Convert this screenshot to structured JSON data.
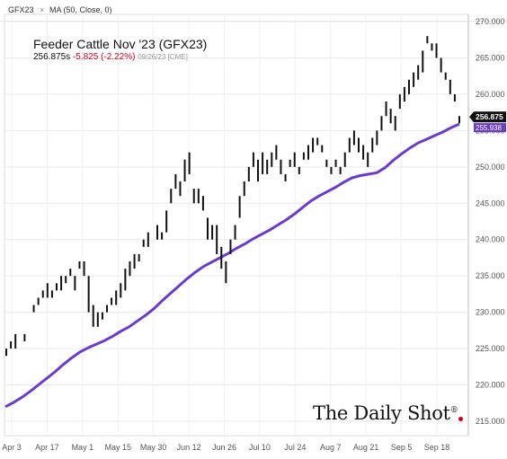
{
  "toolbar": {
    "symbol": "GFX23",
    "close_glyph": "×",
    "indicator": "MA (50, Close, 0)"
  },
  "header": {
    "title": "Feeder Cattle Nov '23 (GFX23)",
    "price": "256.875s",
    "change": "-5.825 (-2.22%)",
    "timestamp": "09/26/23 [CME]"
  },
  "watermark": {
    "text": "The Daily Shot",
    "mark": "®"
  },
  "colors": {
    "bars": "#111111",
    "ma": "#6a3cc8",
    "change": "#d0021b",
    "grid": "#e9e9e9"
  },
  "chart_data": {
    "type": "ohlc-line",
    "y_axis": {
      "min": 215,
      "max": 270,
      "step": 5,
      "position": "right",
      "tick_labels": [
        "270.000",
        "265.000",
        "260.000",
        "255.000",
        "250.000",
        "245.000",
        "240.000",
        "235.000",
        "230.000",
        "225.000",
        "220.000",
        "215.000"
      ]
    },
    "x_axis": {
      "tick_labels": [
        "Apr 3",
        "Apr 17",
        "May 1",
        "May 15",
        "May 30",
        "Jun 12",
        "Jun 26",
        "Jul 10",
        "Jul 24",
        "Aug 7",
        "Aug 21",
        "Sep 5",
        "Sep 18"
      ]
    },
    "last_price_label": "256.875",
    "ma_label": "255.938",
    "series": [
      {
        "name": "GFX23",
        "kind": "bars",
        "values": [
          [
            225,
            224
          ],
          [
            226,
            225
          ],
          [
            227,
            225
          ],
          [
            226,
            226
          ],
          [
            227,
            226
          ],
          [
            228,
            228
          ],
          [
            231,
            230
          ],
          [
            232,
            231
          ],
          [
            233,
            232
          ],
          [
            234,
            232
          ],
          [
            233,
            232
          ],
          [
            234,
            233
          ],
          [
            235,
            233
          ],
          [
            235,
            234
          ],
          [
            236,
            235
          ],
          [
            235,
            233
          ],
          [
            237,
            236
          ],
          [
            237,
            235
          ],
          [
            235,
            230
          ],
          [
            231,
            228
          ],
          [
            230,
            228
          ],
          [
            230,
            229
          ],
          [
            231,
            230
          ],
          [
            232,
            231
          ],
          [
            233,
            231
          ],
          [
            234,
            232
          ],
          [
            236,
            233
          ],
          [
            237,
            235
          ],
          [
            238,
            236
          ],
          [
            238,
            237
          ],
          [
            240,
            239
          ],
          [
            241,
            239
          ],
          [
            240,
            240
          ],
          [
            242,
            240
          ],
          [
            241,
            240
          ],
          [
            244,
            241
          ],
          [
            247,
            245
          ],
          [
            249,
            247
          ],
          [
            248,
            246
          ],
          [
            251,
            248
          ],
          [
            252,
            249
          ],
          [
            247,
            245
          ],
          [
            247,
            245
          ],
          [
            246,
            244
          ],
          [
            243,
            240
          ],
          [
            242,
            240
          ],
          [
            242,
            238
          ],
          [
            239,
            236
          ],
          [
            237,
            234
          ],
          [
            240,
            238
          ],
          [
            242,
            240
          ],
          [
            246,
            243
          ],
          [
            248,
            246
          ],
          [
            250,
            248
          ],
          [
            252,
            250
          ],
          [
            251,
            248
          ],
          [
            252,
            249
          ],
          [
            251,
            249
          ],
          [
            252,
            250
          ],
          [
            253,
            251
          ],
          [
            251,
            249
          ],
          [
            249,
            248
          ],
          [
            251,
            250
          ],
          [
            252,
            250
          ],
          [
            250,
            249
          ],
          [
            252,
            251
          ],
          [
            253,
            251
          ],
          [
            254,
            252
          ],
          [
            254,
            253
          ],
          [
            253,
            252
          ],
          [
            251,
            250
          ],
          [
            250,
            249
          ],
          [
            251,
            250
          ],
          [
            250,
            249
          ],
          [
            252,
            250
          ],
          [
            254,
            252
          ],
          [
            255,
            253
          ],
          [
            254,
            252
          ],
          [
            253,
            251
          ],
          [
            252,
            250
          ],
          [
            254,
            252
          ],
          [
            255,
            253
          ],
          [
            257,
            255
          ],
          [
            259,
            257
          ],
          [
            258,
            256
          ],
          [
            257,
            255
          ],
          [
            260,
            258
          ],
          [
            261,
            259
          ],
          [
            262,
            260
          ],
          [
            263,
            261
          ],
          [
            264,
            262
          ],
          [
            266,
            263
          ],
          [
            268,
            267
          ],
          [
            267,
            266
          ],
          [
            267,
            265
          ],
          [
            265,
            263
          ],
          [
            263,
            262
          ],
          [
            262,
            260
          ],
          [
            260,
            259
          ],
          [
            257,
            256
          ]
        ]
      },
      {
        "name": "MA (50, Close, 0)",
        "kind": "line",
        "values": [
          217.0,
          217.6,
          218.3,
          219.1,
          220.0,
          220.9,
          221.8,
          222.8,
          223.7,
          224.5,
          225.1,
          225.6,
          226.1,
          226.7,
          227.4,
          228.0,
          228.8,
          229.6,
          230.5,
          231.6,
          232.6,
          233.6,
          234.6,
          235.5,
          236.3,
          236.9,
          237.5,
          238.1,
          238.8,
          239.4,
          240.1,
          240.7,
          241.3,
          242.0,
          242.7,
          243.5,
          244.4,
          245.3,
          246.0,
          246.6,
          247.2,
          247.9,
          248.5,
          248.8,
          249.0,
          249.2,
          249.9,
          250.9,
          251.8,
          252.6,
          253.3,
          253.8,
          254.3,
          254.8,
          255.4,
          255.9
        ]
      }
    ]
  }
}
